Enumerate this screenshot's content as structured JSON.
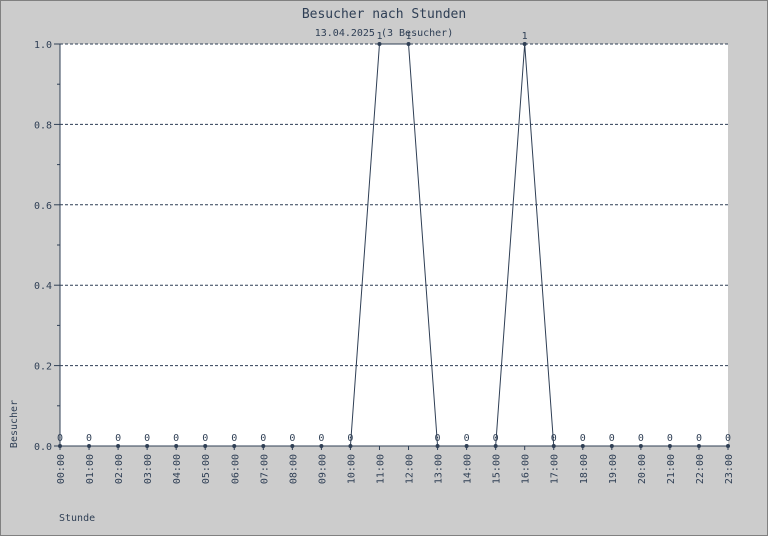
{
  "chart_data": {
    "type": "line",
    "title": "Besucher nach Stunden",
    "subtitle": "13.04.2025 (3 Besucher)",
    "xlabel": "Stunde",
    "ylabel": "Besucher",
    "categories": [
      "00:00",
      "01:00",
      "02:00",
      "03:00",
      "04:00",
      "05:00",
      "06:00",
      "07:00",
      "08:00",
      "09:00",
      "10:00",
      "11:00",
      "12:00",
      "13:00",
      "14:00",
      "15:00",
      "16:00",
      "17:00",
      "18:00",
      "19:00",
      "20:00",
      "21:00",
      "22:00",
      "23:00"
    ],
    "values": [
      0,
      0,
      0,
      0,
      0,
      0,
      0,
      0,
      0,
      0,
      0,
      1,
      1,
      0,
      0,
      0,
      1,
      0,
      0,
      0,
      0,
      0,
      0,
      0
    ],
    "yticks": [
      "0.0",
      "0.2",
      "0.4",
      "0.6",
      "0.8",
      "1.0"
    ],
    "ylim": [
      0,
      1
    ],
    "grid": true,
    "colors": {
      "line": "#2f3f55",
      "background": "#ffffff",
      "frame": "#cccccc"
    }
  }
}
